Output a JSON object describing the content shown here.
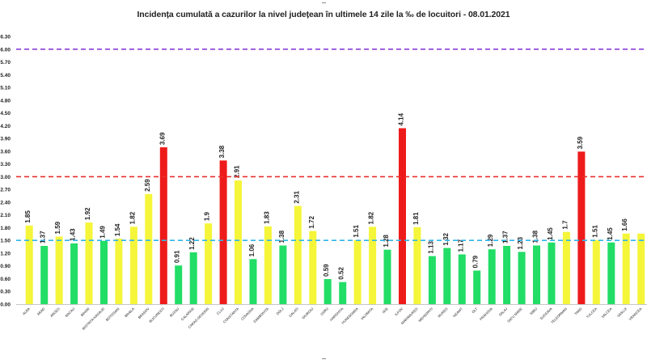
{
  "chart_data": {
    "type": "bar",
    "title": "Incidența cumulată a cazurilor la nivel județean în ultimele 14 zile la ‰ de locuitori - 08.01.2021",
    "xlabel": "",
    "ylabel": "",
    "ylim": [
      0,
      6.3
    ],
    "yticks": [
      "0.00",
      "0.30",
      "0.60",
      "0.90",
      "1.20",
      "1.50",
      "1.80",
      "2.10",
      "2.40",
      "2.70",
      "3.00",
      "3.30",
      "3.60",
      "3.90",
      "4.20",
      "4.50",
      "4.80",
      "5.10",
      "5.40",
      "5.70",
      "6.00",
      "6.30"
    ],
    "grid": false,
    "legend": "none",
    "categories": [
      "ALBA",
      "ARAD",
      "ARGES",
      "BACAU",
      "BIHOR",
      "BISTRITA NASAUD",
      "BOTOSANI",
      "BRAILA",
      "BRASOV",
      "BUCURESTI",
      "BUZAU",
      "CALARASI",
      "CARAS-SEVERIN",
      "CLUJ",
      "CONSTANTA",
      "COVASNA",
      "DAMBOVITA",
      "DOLJ",
      "GALATI",
      "GIURGIU",
      "GORJ",
      "HARGHITA",
      "HUNEDOARA",
      "IALOMITA",
      "IASI",
      "ILFOV",
      "MARAMURES",
      "MEHEDINTI",
      "MURES",
      "NEAMT",
      "OLT",
      "PRAHOVA",
      "SALAJ",
      "SATU MARE",
      "SIBIU",
      "SUCEAVA",
      "TELEORMAN",
      "TIMIS",
      "TULCEA",
      "VALCEA",
      "VASLUI",
      "VRANCEA"
    ],
    "values": [
      1.85,
      1.37,
      1.59,
      1.43,
      1.92,
      1.49,
      1.54,
      1.82,
      2.59,
      3.69,
      0.91,
      1.22,
      1.9,
      3.38,
      2.91,
      1.06,
      1.83,
      1.38,
      2.31,
      1.72,
      0.59,
      0.52,
      1.51,
      1.82,
      1.28,
      4.14,
      1.81,
      1.13,
      1.32,
      1.17,
      0.79,
      1.29,
      1.37,
      1.23,
      1.38,
      1.45,
      1.7,
      3.59,
      1.51,
      1.45,
      1.66,
      1.66
    ],
    "value_labels": [
      "1.85",
      "1.37",
      "1.59",
      "1.43",
      "1.92",
      "1.49",
      "1.54",
      "1.82",
      "2.59",
      "3.69",
      "0.91",
      "1.22",
      "1.9",
      "3.38",
      "2.91",
      "1.06",
      "1.83",
      "1.38",
      "2.31",
      "1.72",
      "0.59",
      "0.52",
      "1.51",
      "1.82",
      "1.28",
      "4.14",
      "1.81",
      "1.13",
      "1.32",
      "1.17",
      "0.79",
      "1.29",
      "1.37",
      "1.23",
      "1.38",
      "1.45",
      "1.7",
      "3.59",
      "1.51",
      "1.45",
      "1.66",
      ""
    ],
    "bar_colors": [
      "yellow",
      "green",
      "yellow",
      "green",
      "yellow",
      "green",
      "yellow",
      "yellow",
      "yellow",
      "red",
      "green",
      "green",
      "yellow",
      "red",
      "yellow",
      "green",
      "yellow",
      "green",
      "yellow",
      "yellow",
      "green",
      "green",
      "yellow",
      "yellow",
      "green",
      "red",
      "yellow",
      "green",
      "green",
      "green",
      "green",
      "green",
      "green",
      "green",
      "green",
      "green",
      "yellow",
      "red",
      "yellow",
      "green",
      "yellow",
      "yellow"
    ],
    "reference_lines": [
      {
        "value": 6.0,
        "color": "#8b3fd9"
      },
      {
        "value": 3.0,
        "color": "#e8302b"
      },
      {
        "value": 1.5,
        "color": "#2eb6e8"
      }
    ]
  },
  "colors": {
    "green": "#22dd66",
    "yellow": "#f5f53a",
    "red": "#ee1b1b",
    "text": "#222222"
  }
}
